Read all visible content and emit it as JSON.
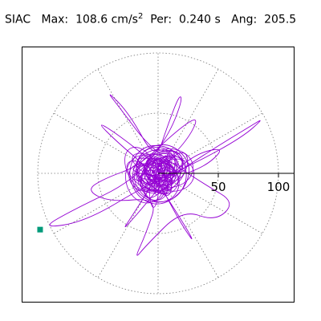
{
  "header": {
    "station": "SIAC",
    "max_label": "Max:",
    "max_value": "108.6",
    "max_unit": "cm/s",
    "max_exponent": "2",
    "per_label": "Per:",
    "per_value": "0.240 s",
    "ang_label": "Ang:",
    "ang_value": "205.5"
  },
  "chart_data": {
    "type": "scatter",
    "subtype": "polar particle-motion hodogram",
    "title": "SIAC  Max: 108.6 cm/s2  Per: 0.240 s  Ang: 205.5",
    "radial_ticks": [
      50,
      100
    ],
    "radial_range": [
      0,
      120
    ],
    "angular_spokes_deg": [
      0,
      30,
      60,
      90,
      120,
      150,
      180,
      210,
      240,
      270,
      300,
      330
    ],
    "grid": true,
    "trace_color": "#9400d3",
    "marker_color": "#009a7a",
    "peak": {
      "amplitude": 108.6,
      "angle_deg": 205.5
    },
    "trace_points": [
      [
        0,
        0
      ],
      [
        6,
        10
      ],
      [
        -8,
        14
      ],
      [
        -14,
        -4
      ],
      [
        4,
        -18
      ],
      [
        20,
        -6
      ],
      [
        16,
        14
      ],
      [
        -2,
        22
      ],
      [
        -20,
        10
      ],
      [
        -22,
        -12
      ],
      [
        -4,
        -26
      ],
      [
        18,
        -20
      ],
      [
        26,
        2
      ],
      [
        12,
        22
      ],
      [
        -12,
        24
      ],
      [
        -26,
        4
      ],
      [
        -18,
        -20
      ],
      [
        2,
        -28
      ],
      [
        22,
        -14
      ],
      [
        28,
        8
      ],
      [
        10,
        26
      ],
      [
        -14,
        20
      ],
      [
        -20,
        -2
      ],
      [
        -6,
        -16
      ],
      [
        10,
        -12
      ],
      [
        14,
        4
      ],
      [
        4,
        14
      ],
      [
        -10,
        8
      ],
      [
        -8,
        -8
      ],
      [
        6,
        -6
      ],
      [
        42,
        18
      ],
      [
        78,
        40
      ],
      [
        88,
        46
      ],
      [
        70,
        30
      ],
      [
        30,
        8
      ],
      [
        -10,
        -10
      ],
      [
        -60,
        -40
      ],
      [
        -98,
        -46
      ],
      [
        -70,
        -30
      ],
      [
        -20,
        -6
      ],
      [
        8,
        30
      ],
      [
        20,
        60
      ],
      [
        18,
        66
      ],
      [
        8,
        40
      ],
      [
        -2,
        10
      ],
      [
        -24,
        50
      ],
      [
        -44,
        70
      ],
      [
        -30,
        52
      ],
      [
        -6,
        20
      ],
      [
        40,
        -10
      ],
      [
        64,
        -24
      ],
      [
        48,
        -40
      ],
      [
        20,
        -30
      ],
      [
        -10,
        -60
      ],
      [
        -20,
        -72
      ],
      [
        -10,
        -50
      ],
      [
        0,
        -20
      ],
      [
        -40,
        -24
      ],
      [
        -60,
        -14
      ],
      [
        -44,
        -4
      ],
      [
        -16,
        6
      ],
      [
        16,
        36
      ],
      [
        34,
        48
      ],
      [
        26,
        30
      ],
      [
        6,
        8
      ],
      [
        -22,
        -36
      ],
      [
        -30,
        -48
      ],
      [
        -14,
        -30
      ],
      [
        4,
        -8
      ],
      [
        30,
        16
      ],
      [
        56,
        22
      ],
      [
        40,
        6
      ],
      [
        12,
        -4
      ],
      [
        -30,
        30
      ],
      [
        -52,
        44
      ],
      [
        -34,
        26
      ],
      [
        -8,
        4
      ],
      [
        24,
        -46
      ],
      [
        30,
        -58
      ],
      [
        18,
        -40
      ],
      [
        2,
        -10
      ],
      [
        -4,
        2
      ],
      [
        0,
        0
      ]
    ]
  }
}
